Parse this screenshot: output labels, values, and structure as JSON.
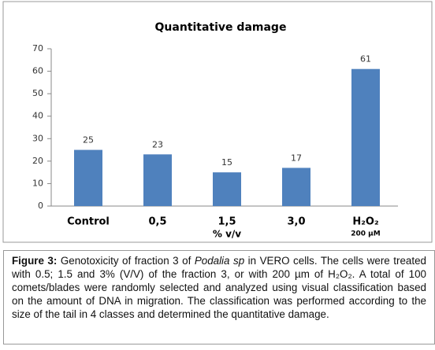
{
  "chart_data": {
    "type": "bar",
    "title": "Quantitative damage",
    "categories": [
      "Control",
      "0,5",
      "1,5",
      "3,0",
      "H₂O₂"
    ],
    "values": [
      25,
      23,
      15,
      17,
      61
    ],
    "color": "#4f81bd",
    "x_label": "% v/v",
    "annotation": "200 µM",
    "ylim": [
      0,
      70
    ],
    "yticks": [
      0,
      10,
      20,
      30,
      40,
      50,
      60,
      70
    ],
    "grid": false
  },
  "caption": {
    "label": "Figure 3:",
    "parts": [
      "Genotoxicity of fraction 3 of ",
      "Podalia sp",
      " in VERO cells. The cells were treated with 0.5; 1.5 and 3% (V/V) of the fraction 3, or with 200 µm of H₂O₂. A total of 100 comets/blades were randomly selected and analyzed using visual classification based on the amount of DNA in migration. The classification was performed according to the size of the tail in 4 classes and determined the quantitative damage."
    ]
  }
}
